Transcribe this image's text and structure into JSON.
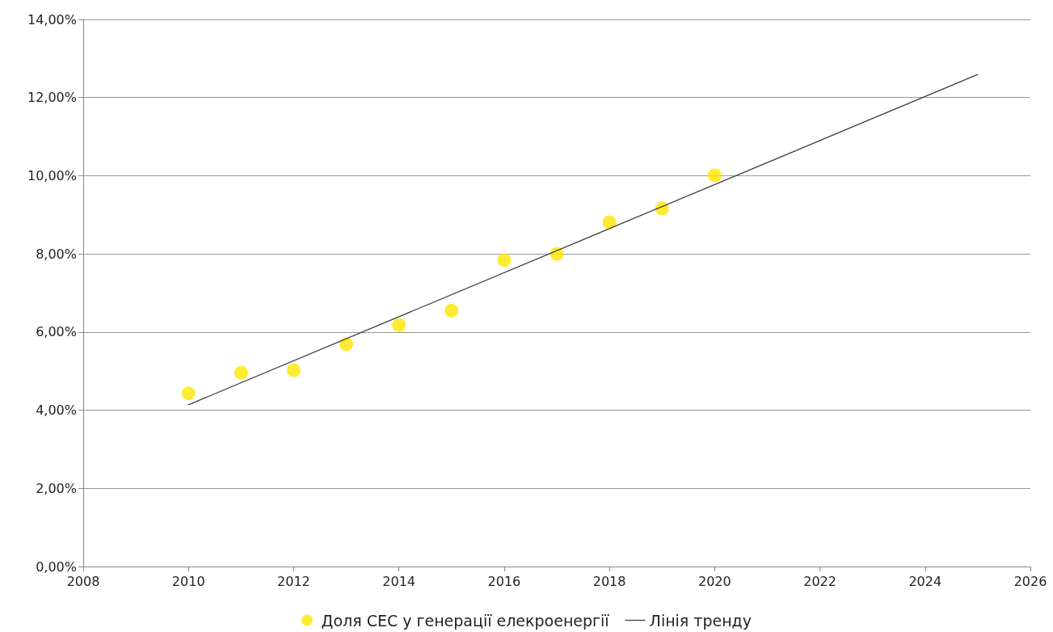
{
  "chart_data": {
    "type": "scatter",
    "series": [
      {
        "name": "Доля СЕС у генерації елекроенергії",
        "color": "#ffe600",
        "marker": "circle",
        "x": [
          2010,
          2011,
          2012,
          2013,
          2014,
          2015,
          2016,
          2017,
          2018,
          2019,
          2020
        ],
        "values": [
          4.43,
          4.96,
          5.02,
          5.69,
          6.18,
          6.55,
          7.84,
          8.0,
          8.81,
          9.16,
          10.01
        ]
      },
      {
        "name": "Лінія тренду",
        "type": "line",
        "color": "#404040",
        "marker": "none",
        "line_style": "solid",
        "x": [
          2010,
          2025
        ],
        "values": [
          4.14,
          12.59
        ]
      }
    ],
    "xlim": [
      2008,
      2026
    ],
    "xticks": [
      2008,
      2010,
      2012,
      2014,
      2016,
      2018,
      2020,
      2022,
      2024,
      2026
    ],
    "ylim": [
      0,
      14
    ],
    "yticks": [
      {
        "value": 0,
        "label": "0,00%"
      },
      {
        "value": 2,
        "label": "2,00%"
      },
      {
        "value": 4,
        "label": "4,00%"
      },
      {
        "value": 6,
        "label": "6,00%"
      },
      {
        "value": 8,
        "label": "8,00%"
      },
      {
        "value": 10,
        "label": "10,00%"
      },
      {
        "value": 12,
        "label": "12,00%"
      },
      {
        "value": 14,
        "label": "14,00%"
      }
    ],
    "grid": "y",
    "legend": "bottom"
  }
}
